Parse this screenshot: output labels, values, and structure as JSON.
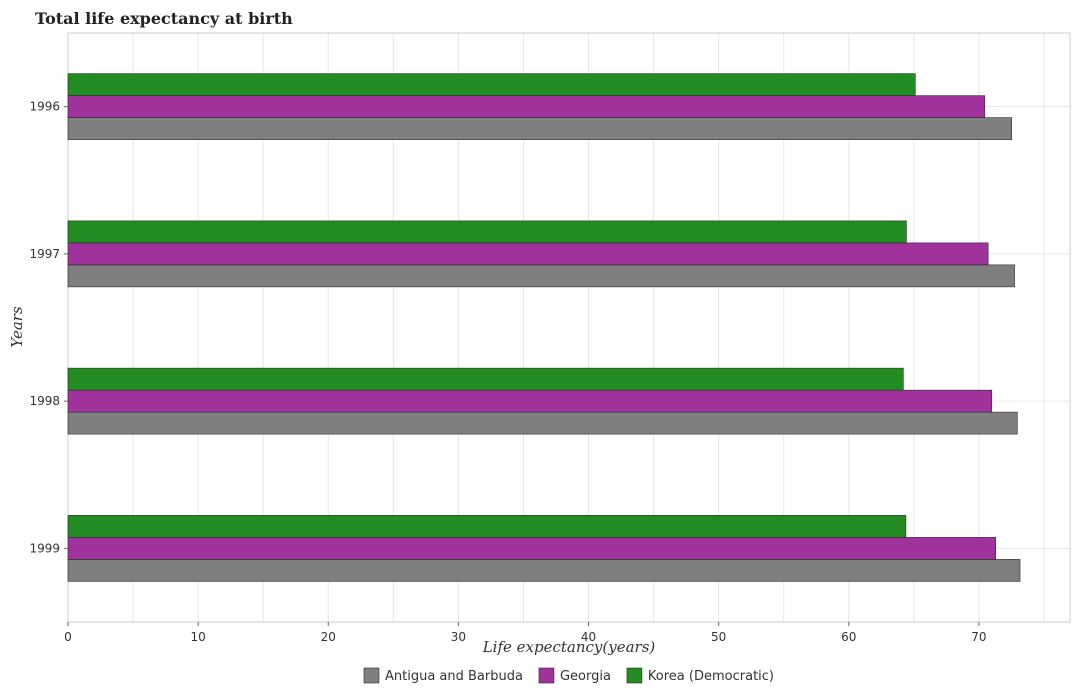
{
  "chart_data": {
    "type": "bar",
    "orientation": "horizontal",
    "title": "Total life expectancy at birth",
    "xlabel": "Life expectancy(years)",
    "ylabel": "Years",
    "xlim": [
      0,
      77
    ],
    "xticks": [
      0,
      10,
      20,
      30,
      40,
      50,
      60,
      70
    ],
    "categories": [
      "1996",
      "1997",
      "1998",
      "1999"
    ],
    "series": [
      {
        "name": "Antigua and Barbuda",
        "color": "#7f7f7f",
        "values": [
          72.52,
          72.74,
          72.95,
          73.16
        ]
      },
      {
        "name": "Georgia",
        "color": "#a0329b",
        "values": [
          70.45,
          70.71,
          70.99,
          71.29
        ]
      },
      {
        "name": "Korea (Democratic)",
        "color": "#228b22",
        "values": [
          65.11,
          64.43,
          64.19,
          64.39
        ]
      }
    ],
    "grid": true,
    "legend": "bottom-center"
  }
}
